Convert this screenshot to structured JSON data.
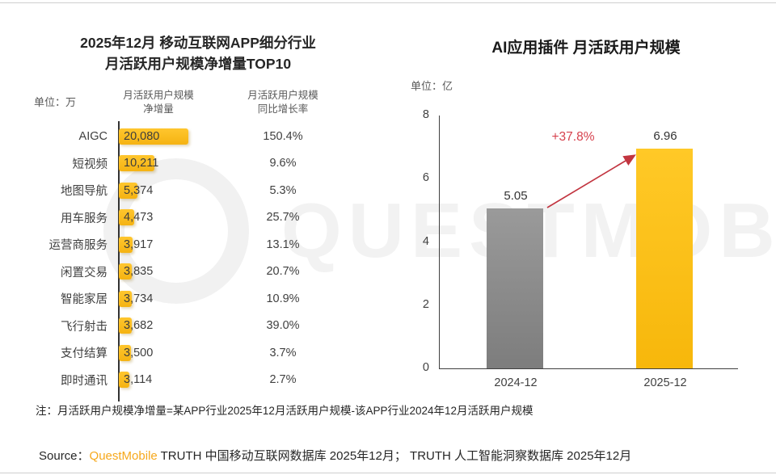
{
  "page": {
    "watermark": "QUESTMOBILE",
    "note": "注：月活跃用户规模净增量=某APP行业2025年12月活跃用户规模-该APP行业2024年12月活跃用户规模",
    "source_prefix": "Source：",
    "source_brand": "QuestMobile",
    "source_rest": " TRUTH 中国移动互联网数据库 2025年12月；  TRUTH 人工智能洞察数据库 2025年12月"
  },
  "chart_data": [
    {
      "type": "bar",
      "orientation": "horizontal",
      "title_line1": "2025年12月 移动互联网APP细分行业",
      "title_line2": "月活跃用户规模净增量TOP10",
      "unit_label": "单位：万",
      "col1_header_line1": "月活跃用户规模",
      "col1_header_line2": "净增量",
      "col2_header_line1": "月活跃用户规模",
      "col2_header_line2": "同比增长率",
      "categories": [
        "AIGC",
        "短视频",
        "地图导航",
        "用车服务",
        "运营商服务",
        "闲置交易",
        "智能家居",
        "飞行射击",
        "支付结算",
        "即时通讯"
      ],
      "values": [
        20080,
        10211,
        5374,
        4473,
        3917,
        3835,
        3734,
        3682,
        3500,
        3114
      ],
      "value_labels": [
        "20,080",
        "10,211",
        "5,374",
        "4,473",
        "3,917",
        "3,835",
        "3,734",
        "3,682",
        "3,500",
        "3,114"
      ],
      "growth_labels": [
        "150.4%",
        "9.6%",
        "5.3%",
        "25.7%",
        "13.1%",
        "20.7%",
        "10.9%",
        "39.0%",
        "3.7%",
        "2.7%"
      ],
      "xmax": 20080,
      "bar_color_top": "#FFC62E",
      "bar_color_bottom": "#F5B312"
    },
    {
      "type": "bar",
      "orientation": "vertical",
      "title": "AI应用插件 月活跃用户规模",
      "unit_label": "单位：亿",
      "categories": [
        "2024-12",
        "2025-12"
      ],
      "values": [
        5.05,
        6.96
      ],
      "value_labels": [
        "5.05",
        "6.96"
      ],
      "growth_annotation": "+37.8%",
      "ylim": [
        0,
        8
      ],
      "yticks": [
        8,
        6,
        4,
        2,
        0
      ],
      "bar_colors_top": [
        "#9A9A9A",
        "#FFC927"
      ],
      "bar_colors_bottom": [
        "#7D7D7D",
        "#F7B70B"
      ],
      "annotation_color": "#D6414D",
      "arrow_color": "#C23540",
      "grid": false,
      "legend": false
    }
  ]
}
